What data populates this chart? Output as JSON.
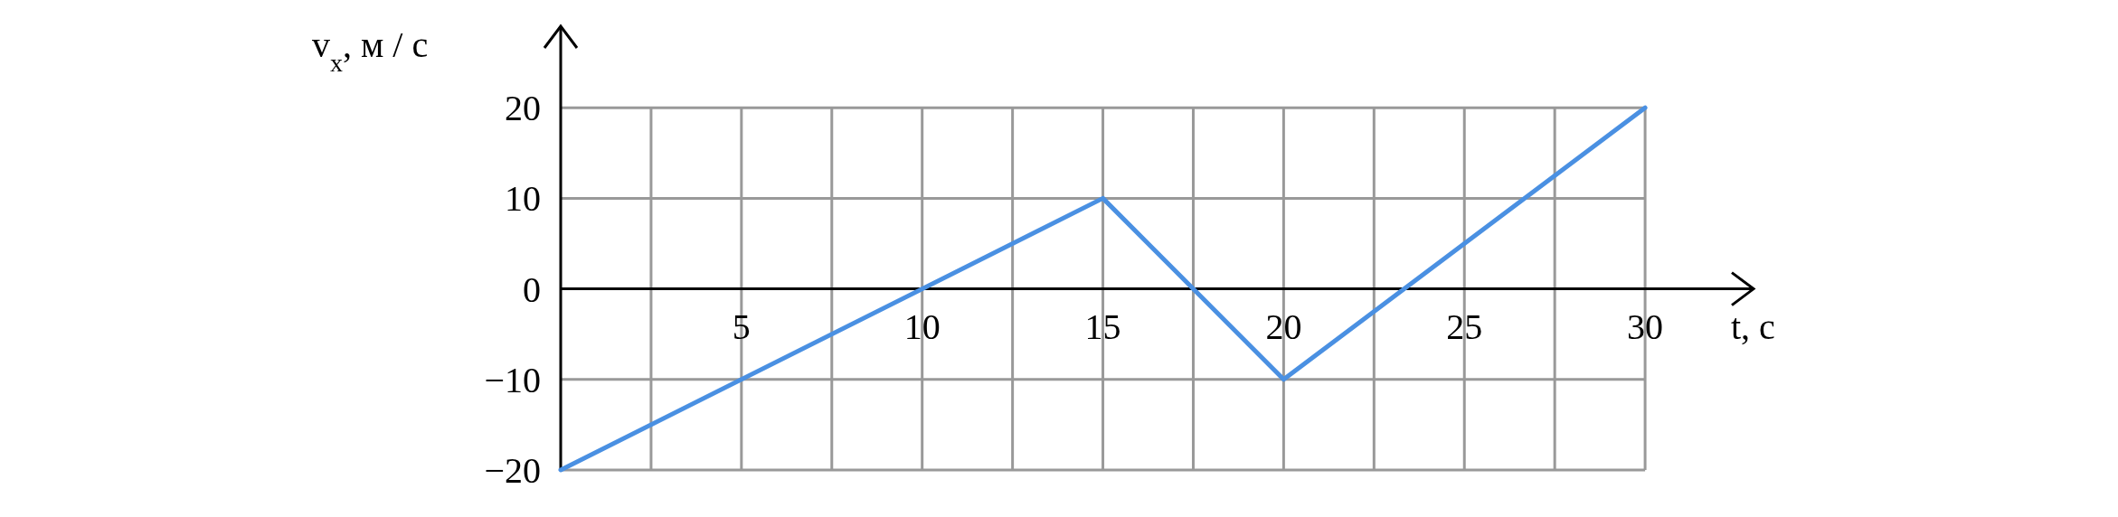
{
  "chart_data": {
    "type": "line",
    "xlabel": "t, с",
    "ylabel": "v$_{x}$, м / с",
    "x": [
      0,
      15,
      20,
      30
    ],
    "series": [
      {
        "color": "#4a90e2",
        "values": [
          -20,
          10,
          -10,
          20
        ]
      }
    ],
    "xlim": [
      0,
      33
    ],
    "ylim": [
      -20,
      29
    ],
    "xticks": [
      {
        "value": 2.5,
        "label": null
      },
      5,
      {
        "value": 7.5,
        "label": null
      },
      10,
      {
        "value": 12.5,
        "label": null
      },
      15,
      {
        "value": 17.5,
        "label": null
      },
      20,
      {
        "value": 22.5,
        "label": null
      },
      25,
      {
        "value": 27.5,
        "label": null
      },
      30
    ],
    "yticks": [
      -20,
      -10,
      0,
      10,
      20
    ],
    "grid": true,
    "marker": "none",
    "line_style": "solid"
  }
}
